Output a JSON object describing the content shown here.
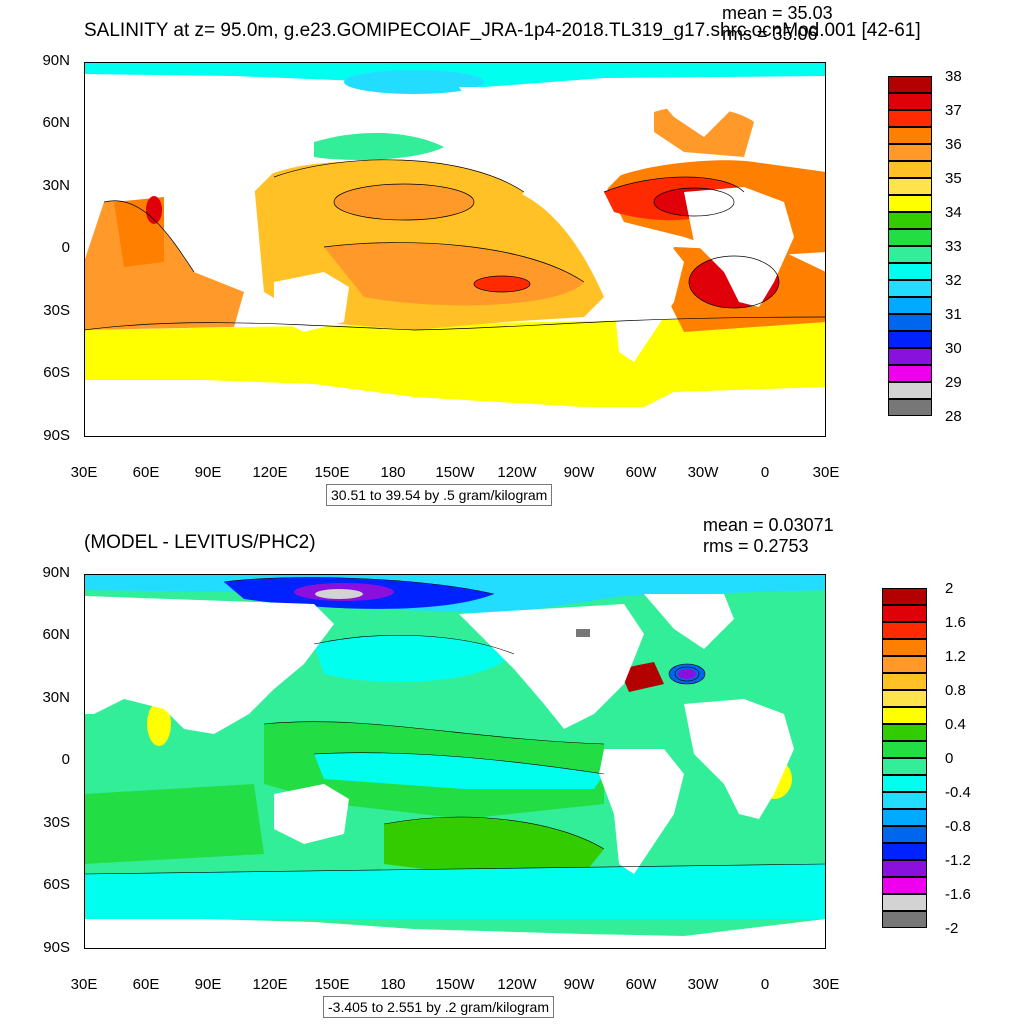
{
  "top": {
    "title": "SALINITY at z=  95.0m, g.e23.GOMIPECOIAF_JRA-1p4-2018.TL319_g17.shrc.ocnMod.001 [42-61]",
    "mean": "mean = 35.03",
    "rms": "rms = 35.06",
    "range_text": "30.51 to 39.54 by .5 gram/kilogram",
    "lat_labels": [
      "90N",
      "60N",
      "30N",
      "0",
      "30S",
      "60S",
      "90S"
    ],
    "lon_labels": [
      "30E",
      "60E",
      "90E",
      "120E",
      "150E",
      "180",
      "150W",
      "120W",
      "90W",
      "60W",
      "30W",
      "0",
      "30E"
    ],
    "legend": {
      "labels": [
        "38",
        "37",
        "36",
        "35",
        "34",
        "33",
        "32",
        "31",
        "30",
        "29",
        "28"
      ],
      "colors": [
        "#b30000",
        "#e0000a",
        "#ff2a00",
        "#ff7f00",
        "#ff9a2a",
        "#ffc125",
        "#ffe34a",
        "#ffff00",
        "#33cc00",
        "#22dd44",
        "#33ee99",
        "#00ffee",
        "#22ddff",
        "#00aaff",
        "#0066ee",
        "#0022ff",
        "#8a11dd",
        "#ee00ee",
        "#d3d3d3",
        "#777777"
      ]
    }
  },
  "bottom": {
    "title": "(MODEL - LEVITUS/PHC2)",
    "mean": "mean = 0.03071",
    "rms": "rms = 0.2753",
    "range_text": "-3.405 to 2.551 by .2 gram/kilogram",
    "lat_labels": [
      "90N",
      "60N",
      "30N",
      "0",
      "30S",
      "60S",
      "90S"
    ],
    "lon_labels": [
      "30E",
      "60E",
      "90E",
      "120E",
      "150E",
      "180",
      "150W",
      "120W",
      "90W",
      "60W",
      "30W",
      "0",
      "30E"
    ],
    "legend": {
      "labels": [
        "2",
        "1.6",
        "1.2",
        "0.8",
        "0.4",
        "0",
        "-0.4",
        "-0.8",
        "-1.2",
        "-1.6",
        "-2"
      ],
      "colors": [
        "#b30000",
        "#e0000a",
        "#ff2a00",
        "#ff7f00",
        "#ff9a2a",
        "#ffc125",
        "#ffe34a",
        "#ffff00",
        "#33cc00",
        "#22dd44",
        "#33ee99",
        "#00ffee",
        "#22ddff",
        "#00aaff",
        "#0066ee",
        "#0022ff",
        "#8a11dd",
        "#ee00ee",
        "#d3d3d3",
        "#777777"
      ]
    }
  }
}
